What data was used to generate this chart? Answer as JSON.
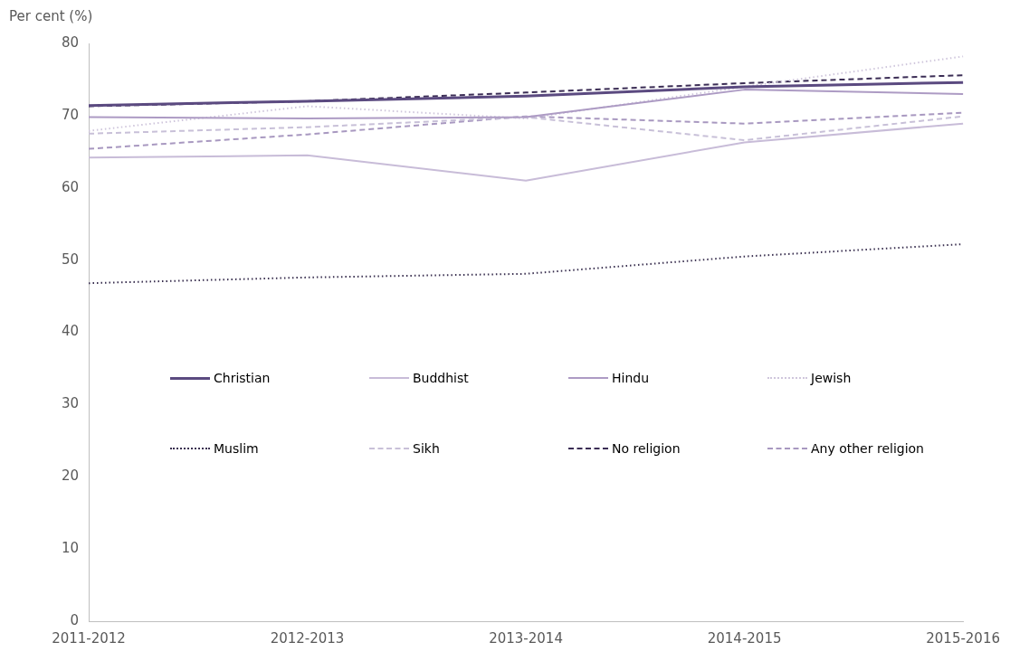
{
  "chart_data": {
    "type": "line",
    "ylabel": "Per cent (%)",
    "categories": [
      "2011-2012",
      "2012-2013",
      "2013-2014",
      "2014-2015",
      "2015-2016"
    ],
    "ylim": [
      0,
      80
    ],
    "yticks": [
      0,
      10,
      20,
      30,
      40,
      50,
      60,
      70,
      80
    ],
    "grid": false,
    "legend": "center",
    "marker": "none",
    "series": [
      {
        "name": "Christian",
        "color": "#5b4a80",
        "line_style": "solid",
        "values": [
          71.4,
          72.0,
          72.7,
          74.0,
          74.6
        ]
      },
      {
        "name": "Buddhist",
        "color": "#c8bcd8",
        "line_style": "solid",
        "values": [
          64.2,
          64.5,
          61.0,
          66.3,
          68.9
        ]
      },
      {
        "name": "Hindu",
        "color": "#ad9bc4",
        "line_style": "solid",
        "values": [
          69.8,
          69.6,
          69.8,
          73.6,
          73.0
        ]
      },
      {
        "name": "Jewish",
        "color": "#cfc6dc",
        "line_style": "dotted",
        "values": [
          67.9,
          71.3,
          69.6,
          74.0,
          78.2
        ]
      },
      {
        "name": "Muslim",
        "color": "#3a3050",
        "line_style": "dotted",
        "values": [
          46.8,
          47.6,
          48.1,
          50.5,
          52.2
        ]
      },
      {
        "name": "Sikh",
        "color": "#c8c0d8",
        "line_style": "dashed",
        "values": [
          67.5,
          68.4,
          69.8,
          66.6,
          69.9
        ]
      },
      {
        "name": "No religion",
        "color": "#3b2d55",
        "line_style": "dashed",
        "values": [
          71.3,
          72.0,
          73.2,
          74.5,
          75.6
        ]
      },
      {
        "name": "Any other religion",
        "color": "#a898c0",
        "line_style": "dashed",
        "values": [
          65.4,
          67.4,
          69.9,
          68.9,
          70.4
        ]
      }
    ]
  }
}
